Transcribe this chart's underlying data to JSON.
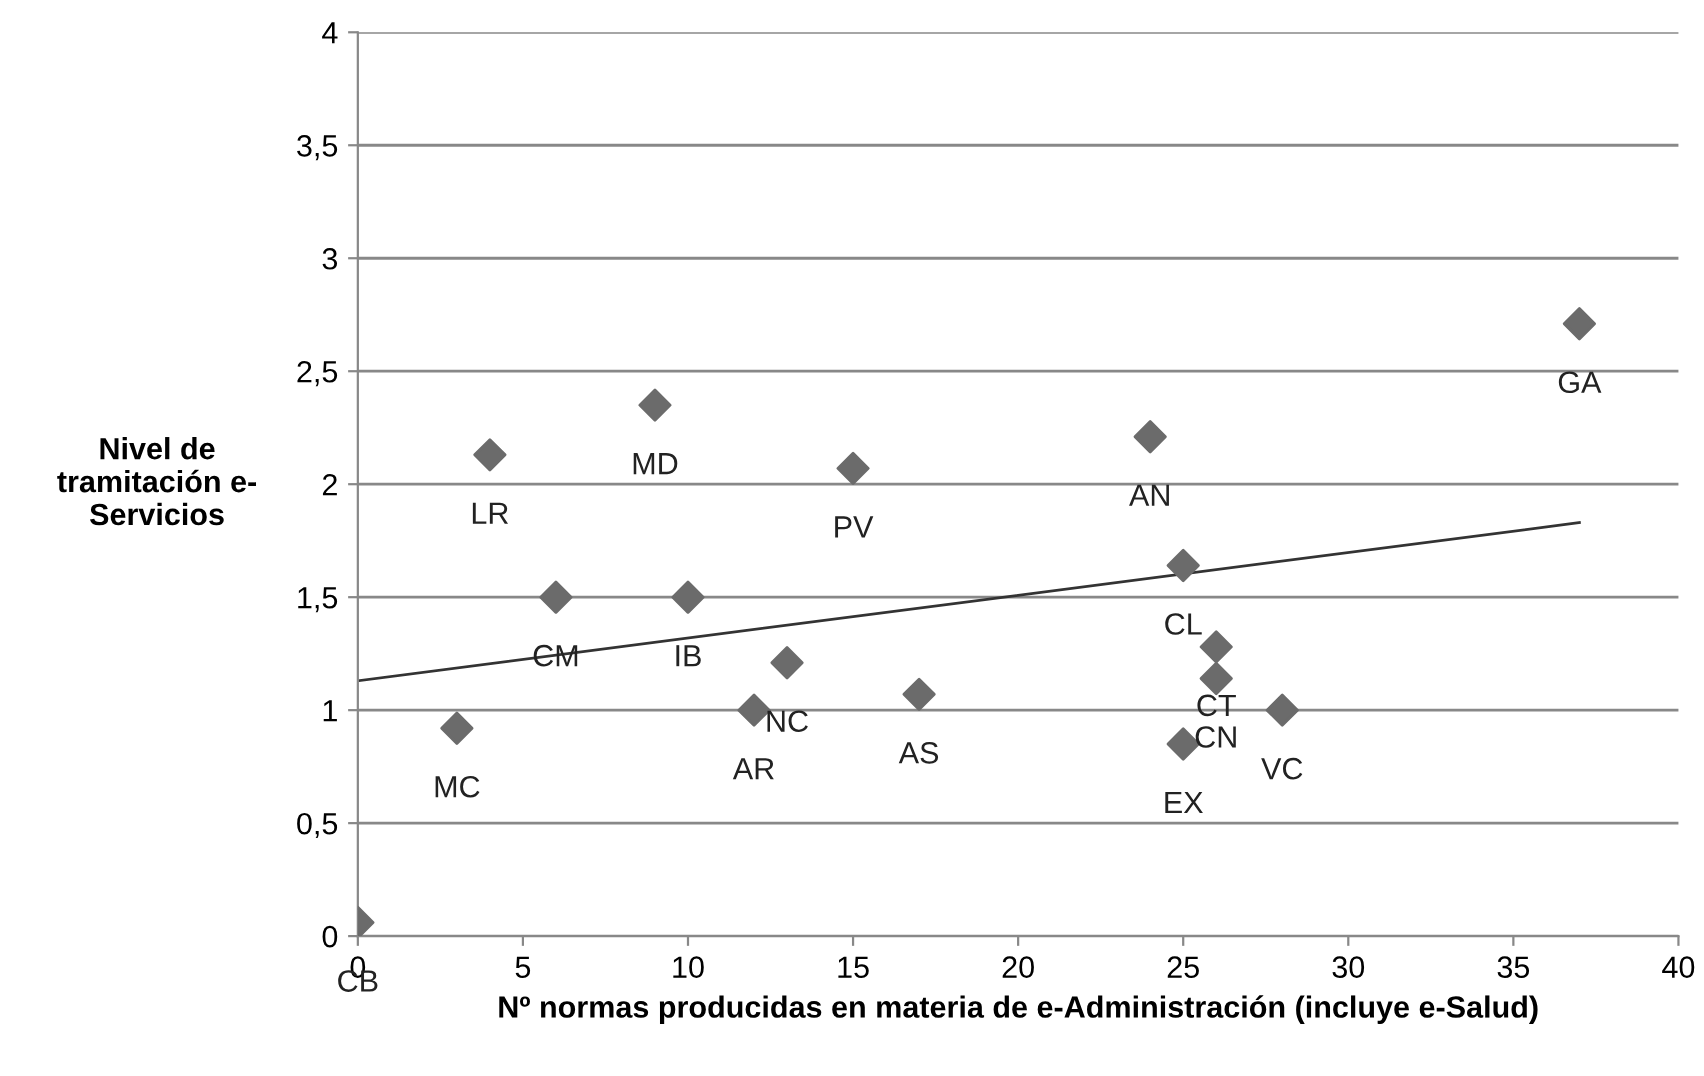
{
  "chart_data": {
    "type": "scatter",
    "xlabel": "Nº normas producidas en materia de e-Administración (incluye e-Salud)",
    "ylabel": "Nivel de\ntramitación e-\nServicios",
    "series": [
      {
        "marker": "diamond",
        "color": "#6b6b6b",
        "x": [
          0,
          3,
          4,
          6,
          9,
          10,
          12,
          13,
          15,
          17,
          24,
          25,
          25,
          26,
          26,
          28,
          37
        ],
        "values": [
          0.06,
          0.92,
          2.13,
          1.5,
          2.35,
          1.5,
          1.0,
          1.21,
          2.07,
          1.07,
          2.21,
          1.64,
          0.85,
          1.28,
          1.14,
          1.0,
          2.71
        ]
      },
      {
        "type": "line",
        "marker": "none",
        "color": "#333333",
        "x": [
          0,
          37
        ],
        "values": [
          1.13,
          1.83
        ]
      }
    ],
    "annotations": [
      {
        "text": "CB",
        "x": 0,
        "y": 0.06
      },
      {
        "text": "MC",
        "x": 3,
        "y": 0.92
      },
      {
        "text": "LR",
        "x": 4,
        "y": 2.13
      },
      {
        "text": "CM",
        "x": 6,
        "y": 1.5
      },
      {
        "text": "MD",
        "x": 9,
        "y": 2.35
      },
      {
        "text": "IB",
        "x": 10,
        "y": 1.5
      },
      {
        "text": "AR",
        "x": 12,
        "y": 1.0
      },
      {
        "text": "NC",
        "x": 13,
        "y": 1.21
      },
      {
        "text": "PV",
        "x": 15,
        "y": 2.07
      },
      {
        "text": "AS",
        "x": 17,
        "y": 1.07
      },
      {
        "text": "AN",
        "x": 24,
        "y": 2.21
      },
      {
        "text": "CL",
        "x": 25,
        "y": 1.64
      },
      {
        "text": "EX",
        "x": 25,
        "y": 0.85
      },
      {
        "text": "CT",
        "x": 26,
        "y": 1.28
      },
      {
        "text": "CN",
        "x": 26,
        "y": 1.14
      },
      {
        "text": "VC",
        "x": 28,
        "y": 1.0
      },
      {
        "text": "GA",
        "x": 37,
        "y": 2.71
      }
    ],
    "xlim": [
      0,
      40
    ],
    "xticks": [
      0,
      5,
      10,
      15,
      20,
      25,
      30,
      35,
      40
    ],
    "ylim": [
      0,
      4
    ],
    "yticks": [
      0,
      {
        "value": 0.5,
        "label": "0,5"
      },
      1,
      {
        "value": 1.5,
        "label": "1,5"
      },
      2,
      {
        "value": 2.5,
        "label": "2,5"
      },
      3,
      {
        "value": 3.5,
        "label": "3,5"
      },
      4
    ],
    "grid": "y"
  }
}
